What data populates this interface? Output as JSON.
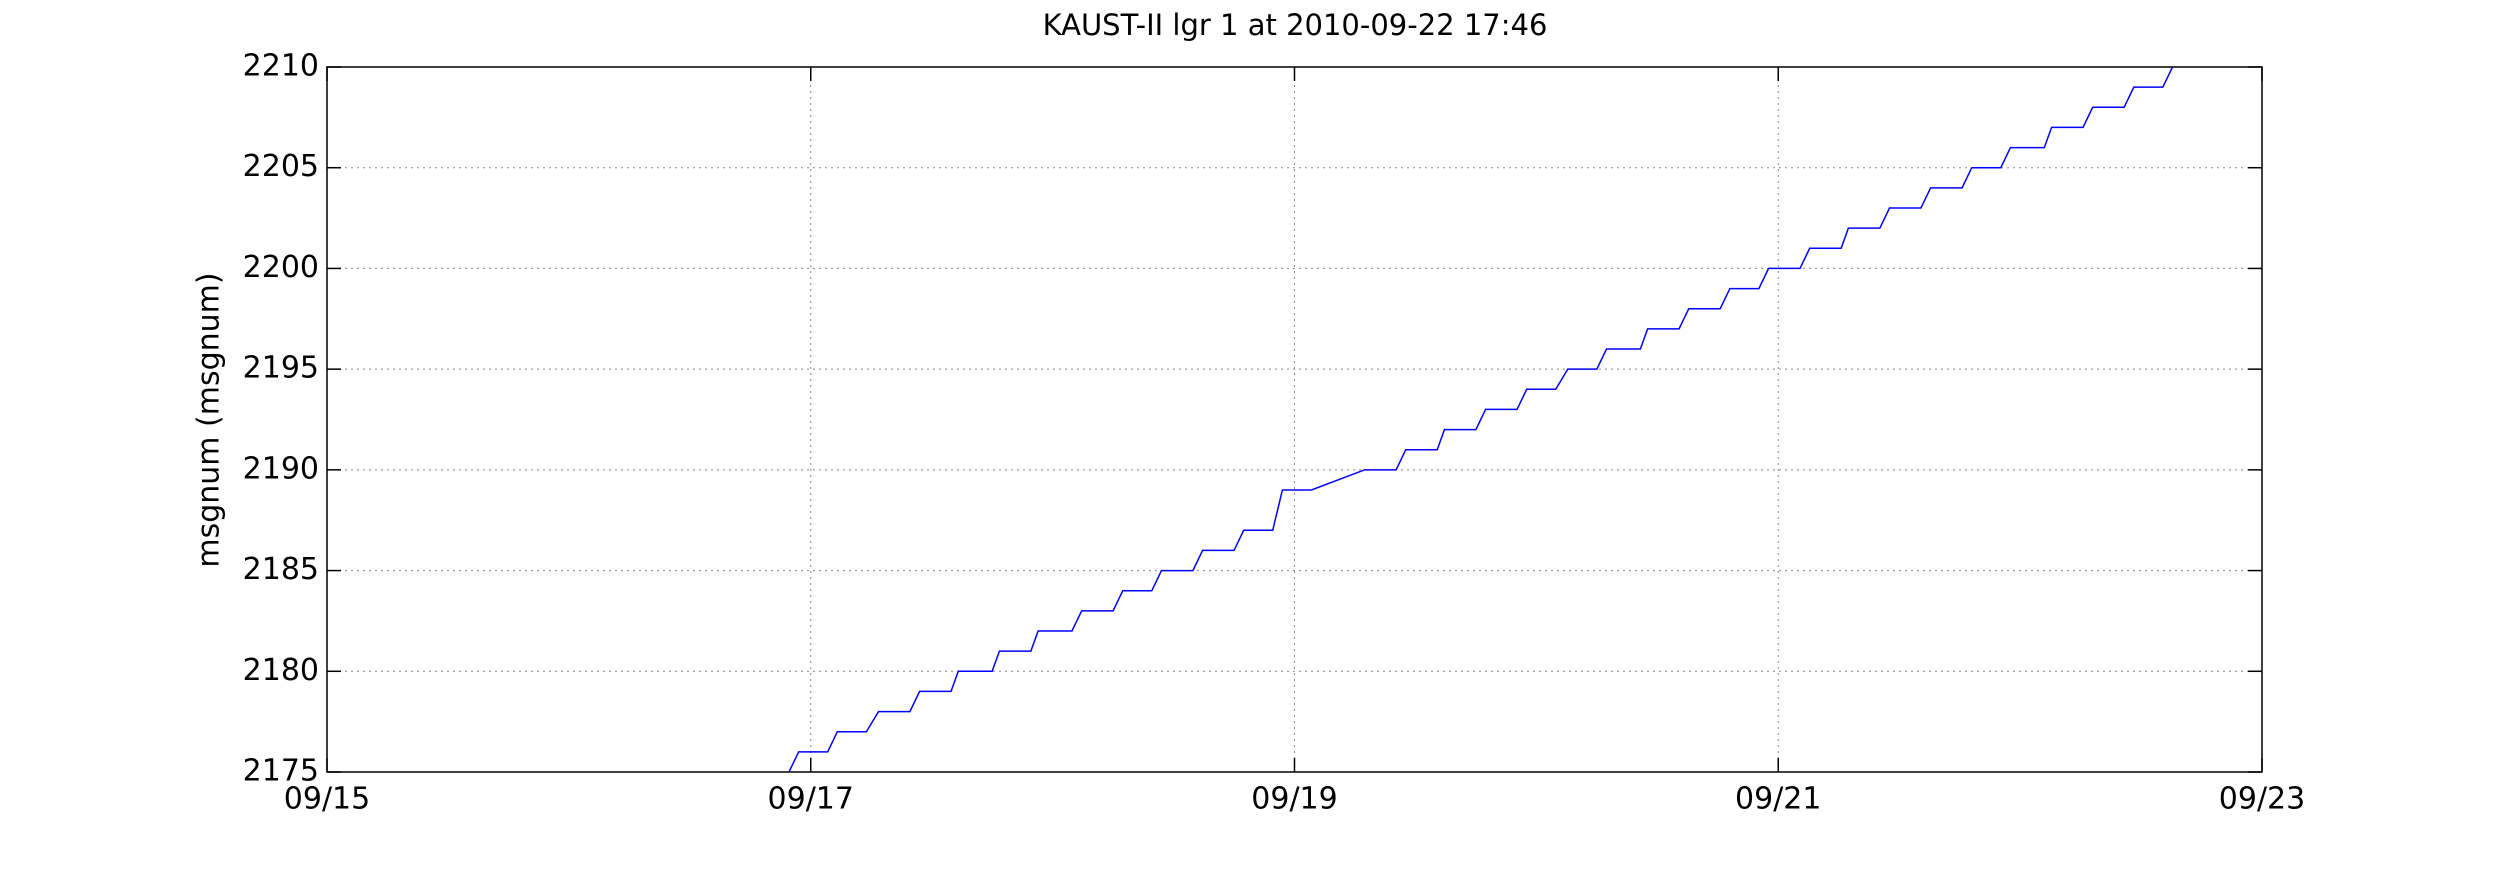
{
  "chart_data": {
    "type": "line",
    "title": "KAUST-II lgr 1 at 2010-09-22 17:46",
    "y_label": "msgnum (msgnum)",
    "x": [
      16.91,
      16.95,
      17.07,
      17.11,
      17.23,
      17.28,
      17.41,
      17.45,
      17.58,
      17.61,
      17.75,
      17.78,
      17.91,
      17.94,
      18.08,
      18.12,
      18.25,
      18.29,
      18.41,
      18.45,
      18.58,
      18.62,
      18.75,
      18.79,
      18.91,
      18.95,
      19.07,
      19.29,
      19.42,
      19.46,
      19.59,
      19.62,
      19.75,
      19.79,
      19.92,
      19.96,
      20.08,
      20.13,
      20.25,
      20.29,
      20.43,
      20.46,
      20.59,
      20.63,
      20.76,
      20.8,
      20.92,
      20.96,
      21.09,
      21.13,
      21.26,
      21.29,
      21.42,
      21.46,
      21.59,
      21.63,
      21.76,
      21.8,
      21.92,
      21.96,
      22.1,
      22.13,
      22.26,
      22.3,
      22.43,
      22.47,
      22.59,
      22.63
    ],
    "series": [
      {
        "color": "#0000ff",
        "values": [
          2175,
          2176,
          2176,
          2177,
          2177,
          2178,
          2178,
          2179,
          2179,
          2180,
          2180,
          2181,
          2181,
          2182,
          2182,
          2183,
          2183,
          2184,
          2184,
          2185,
          2185,
          2186,
          2186,
          2187,
          2187,
          2189,
          2189,
          2190,
          2190,
          2191,
          2191,
          2192,
          2192,
          2193,
          2193,
          2194,
          2194,
          2195,
          2195,
          2196,
          2196,
          2197,
          2197,
          2198,
          2198,
          2199,
          2199,
          2200,
          2200,
          2201,
          2201,
          2202,
          2202,
          2203,
          2203,
          2204,
          2204,
          2205,
          2205,
          2206,
          2206,
          2207,
          2207,
          2208,
          2208,
          2209,
          2209,
          2210
        ]
      }
    ],
    "xlim": [
      15,
      23
    ],
    "xticks": [
      {
        "value": 15,
        "label": "09/15"
      },
      {
        "value": 17,
        "label": "09/17"
      },
      {
        "value": 19,
        "label": "09/19"
      },
      {
        "value": 21,
        "label": "09/21"
      },
      {
        "value": 23,
        "label": "09/23"
      }
    ],
    "ylim": [
      2175,
      2210
    ],
    "yticks": [
      2175,
      2180,
      2185,
      2190,
      2195,
      2200,
      2205,
      2210
    ],
    "grid": true
  }
}
